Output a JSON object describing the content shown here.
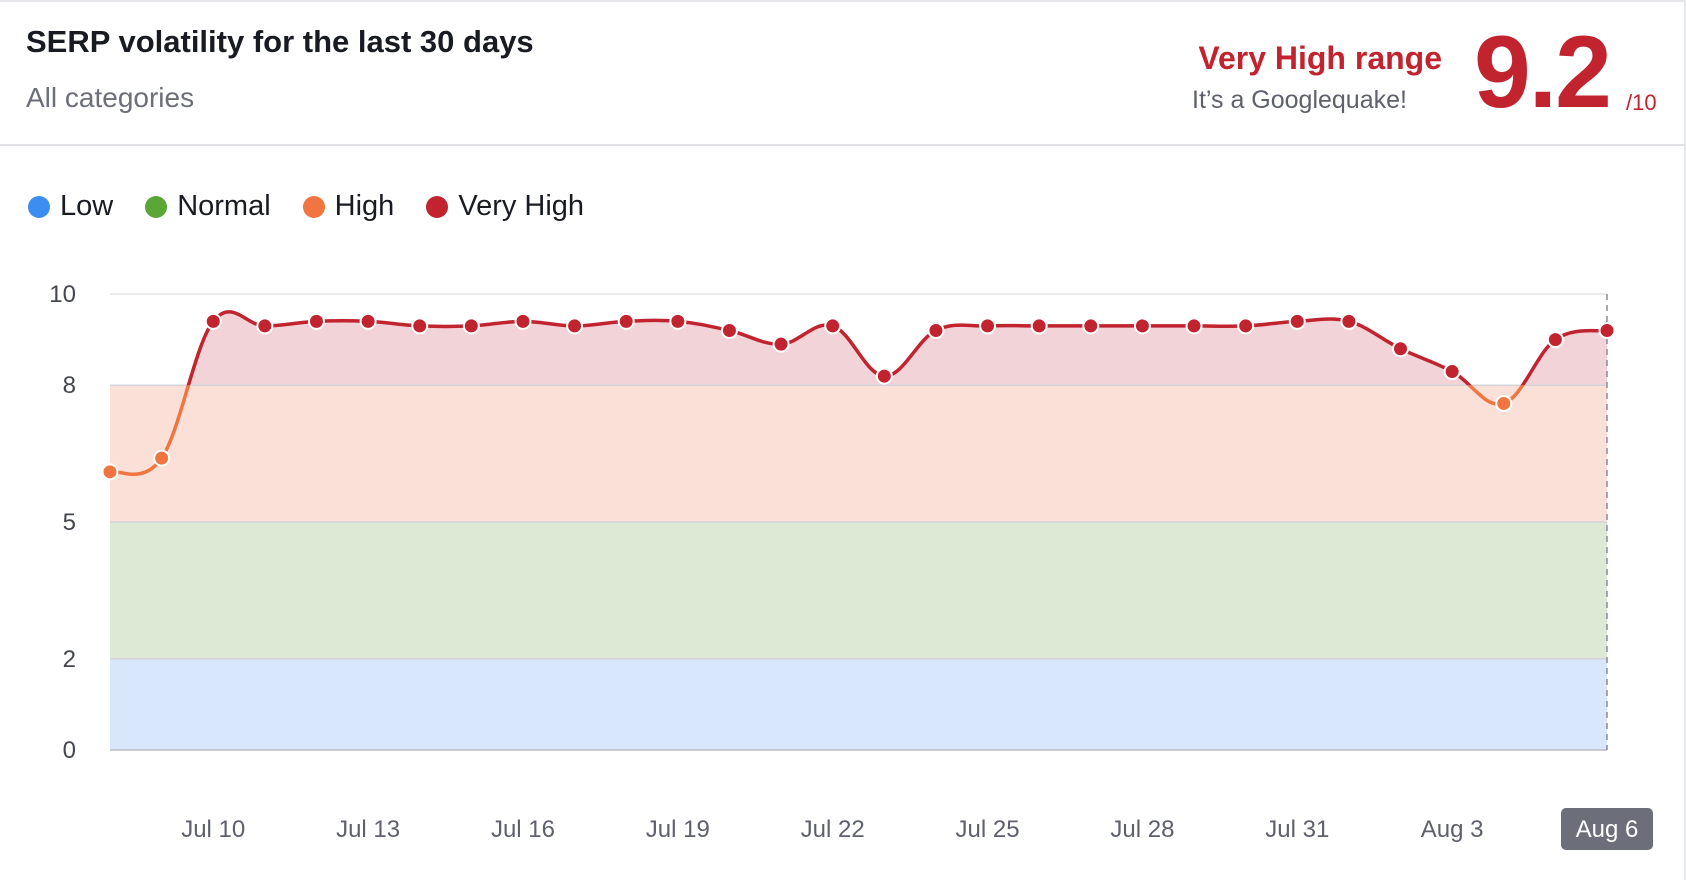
{
  "header": {
    "title": "SERP volatility for the last 30 days",
    "subtitle": "All categories",
    "range_title": "Very High range",
    "range_desc": "It’s a Googlequake!",
    "score": "9.2",
    "score_suffix": "/10"
  },
  "colors": {
    "low": "#3b8def",
    "normal": "#5aa637",
    "high": "#f07541",
    "very_high": "#c1232f",
    "band_low": "#d8e7fb",
    "band_normal": "#dde9d5",
    "band_high": "#fbe0d7",
    "band_very_high": "#f2d4d8"
  },
  "legend": [
    {
      "label": "Low",
      "color_key": "low"
    },
    {
      "label": "Normal",
      "color_key": "normal"
    },
    {
      "label": "High",
      "color_key": "high"
    },
    {
      "label": "Very High",
      "color_key": "very_high"
    }
  ],
  "chart_data": {
    "type": "line",
    "title": "",
    "xlabel": "",
    "ylabel": "",
    "ylim": [
      0,
      10
    ],
    "y_ticks": [
      0,
      2,
      5,
      8,
      10
    ],
    "ranges": [
      {
        "name": "Low",
        "from": 0,
        "to": 2
      },
      {
        "name": "Normal",
        "from": 2,
        "to": 5
      },
      {
        "name": "High",
        "from": 5,
        "to": 8
      },
      {
        "name": "Very High",
        "from": 8,
        "to": 10
      }
    ],
    "x": [
      "Jul 8",
      "Jul 9",
      "Jul 10",
      "Jul 11",
      "Jul 12",
      "Jul 13",
      "Jul 14",
      "Jul 15",
      "Jul 16",
      "Jul 17",
      "Jul 18",
      "Jul 19",
      "Jul 20",
      "Jul 21",
      "Jul 22",
      "Jul 23",
      "Jul 24",
      "Jul 25",
      "Jul 26",
      "Jul 27",
      "Jul 28",
      "Jul 29",
      "Jul 30",
      "Jul 31",
      "Aug 1",
      "Aug 2",
      "Aug 3",
      "Aug 4",
      "Aug 5",
      "Aug 6"
    ],
    "x_tick_labels": [
      "Jul 10",
      "Jul 13",
      "Jul 16",
      "Jul 19",
      "Jul 22",
      "Jul 25",
      "Jul 28",
      "Jul 31",
      "Aug 3",
      "Aug 6"
    ],
    "x_tick_indices": [
      2,
      5,
      8,
      11,
      14,
      17,
      20,
      23,
      26,
      29
    ],
    "highlighted_x": "Aug 6",
    "series": [
      {
        "values": [
          6.1,
          6.4,
          9.4,
          9.3,
          9.4,
          9.4,
          9.3,
          9.3,
          9.4,
          9.3,
          9.4,
          9.4,
          9.2,
          8.9,
          9.3,
          8.2,
          9.2,
          9.3,
          9.3,
          9.3,
          9.3,
          9.3,
          9.3,
          9.4,
          9.4,
          8.8,
          8.3,
          7.6,
          9.0,
          9.2
        ]
      }
    ]
  }
}
